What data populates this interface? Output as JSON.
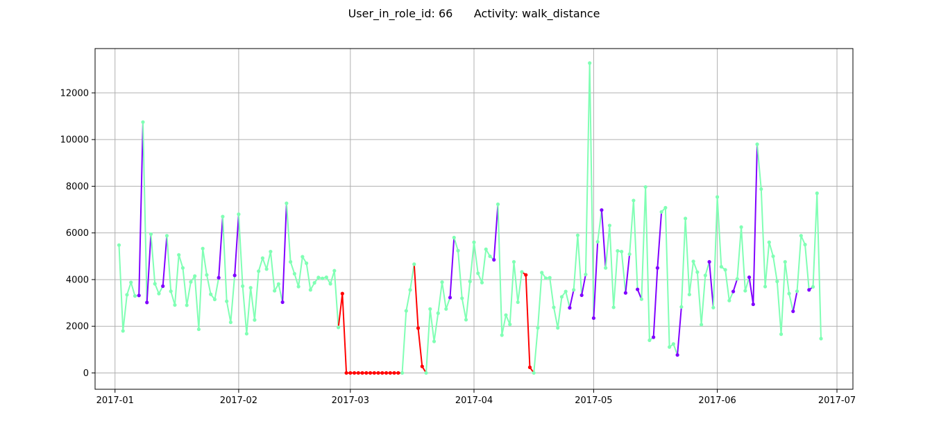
{
  "chart_data": {
    "type": "line",
    "title": "User_in_role_id: 66      Activity: walk_distance",
    "xlabel": "",
    "ylabel": "",
    "xlim": [
      "2016-12-27",
      "2017-07-05"
    ],
    "ylim": [
      -700,
      13900
    ],
    "x_ticks": [
      "2017-01",
      "2017-02",
      "2017-03",
      "2017-04",
      "2017-05",
      "2017-06",
      "2017-07"
    ],
    "y_ticks": [
      0,
      2000,
      4000,
      6000,
      8000,
      10000,
      12000
    ],
    "grid": true,
    "legend": "none",
    "colors": {
      "normal": "#80ffb4",
      "high": "#8000ff",
      "low": "#ff0000",
      "grid": "#b0b0b0"
    },
    "x_start": "2017-01-02",
    "interval_days": 1,
    "values": [
      5480,
      1800,
      3350,
      3880,
      3300,
      3320,
      10750,
      3020,
      5950,
      3820,
      3400,
      3720,
      5880,
      3500,
      2910,
      5060,
      4500,
      2900,
      3900,
      4150,
      1870,
      5330,
      4200,
      3370,
      3150,
      4080,
      6700,
      3070,
      2170,
      4180,
      6800,
      3720,
      1680,
      3650,
      2270,
      4360,
      4920,
      4450,
      5200,
      3520,
      3810,
      3030,
      7270,
      4760,
      4250,
      3700,
      4980,
      4700,
      3560,
      3860,
      4090,
      4050,
      4100,
      3820,
      4380,
      1950,
      3400,
      0,
      0,
      0,
      0,
      0,
      0,
      0,
      0,
      0,
      0,
      0,
      0,
      0,
      0,
      0,
      2660,
      3560,
      4660,
      1920,
      280,
      0,
      2740,
      1350,
      2560,
      3890,
      2740,
      3230,
      5800,
      5240,
      3200,
      2280,
      3920,
      5600,
      4270,
      3870,
      5300,
      5000,
      4850,
      7230,
      1620,
      2480,
      2080,
      4760,
      3030,
      4330,
      4200,
      240,
      0,
      1930,
      4300,
      4060,
      4080,
      2810,
      1930,
      3260,
      3490,
      2790,
      3560,
      5900,
      3330,
      4220,
      13280,
      2350,
      5620,
      6980,
      4500,
      6320,
      2810,
      5230,
      5200,
      3430,
      5090,
      7390,
      3580,
      3160,
      7970,
      1400,
      1530,
      4500,
      6900,
      7080,
      1110,
      1240,
      770,
      2830,
      6620,
      3360,
      4780,
      4320,
      2070,
      4180,
      4760,
      2800,
      7540,
      4550,
      4420,
      3100,
      3490,
      4030,
      6250,
      3520,
      4100,
      2940,
      9800,
      7880,
      3700,
      5600,
      5000,
      3920,
      1660,
      4760,
      3400,
      2640,
      3500,
      5880,
      5500,
      3560,
      3690,
      7700,
      1470
    ],
    "series_states": [
      "normal",
      "normal",
      "normal",
      "normal",
      "normal",
      "high",
      "normal",
      "high",
      "normal",
      "normal",
      "normal",
      "high",
      "normal",
      "normal",
      "normal",
      "normal",
      "normal",
      "normal",
      "normal",
      "normal",
      "normal",
      "normal",
      "normal",
      "normal",
      "normal",
      "high",
      "normal",
      "normal",
      "normal",
      "high",
      "normal",
      "normal",
      "normal",
      "normal",
      "normal",
      "normal",
      "normal",
      "normal",
      "normal",
      "normal",
      "normal",
      "high",
      "normal",
      "normal",
      "normal",
      "normal",
      "normal",
      "normal",
      "normal",
      "normal",
      "normal",
      "normal",
      "normal",
      "normal",
      "normal",
      "normal",
      "low",
      "low",
      "low",
      "low",
      "low",
      "low",
      "low",
      "low",
      "low",
      "low",
      "low",
      "low",
      "low",
      "low",
      "low",
      "normal",
      "normal",
      "normal",
      "normal",
      "low",
      "low",
      "normal",
      "normal",
      "normal",
      "normal",
      "normal",
      "normal",
      "high",
      "normal",
      "normal",
      "normal",
      "normal",
      "normal",
      "normal",
      "normal",
      "normal",
      "normal",
      "normal",
      "high",
      "normal",
      "normal",
      "normal",
      "normal",
      "normal",
      "normal",
      "normal",
      "low",
      "low",
      "normal",
      "normal",
      "normal",
      "normal",
      "normal",
      "normal",
      "normal",
      "normal",
      "normal",
      "high",
      "normal",
      "normal",
      "high",
      "normal",
      "normal",
      "high",
      "normal",
      "high",
      "normal",
      "normal",
      "normal",
      "normal",
      "normal",
      "high",
      "normal",
      "normal",
      "high",
      "normal",
      "normal",
      "normal",
      "high",
      "high",
      "normal",
      "normal",
      "normal",
      "normal",
      "high",
      "normal",
      "normal",
      "normal",
      "normal",
      "normal",
      "normal",
      "normal",
      "high",
      "normal",
      "normal",
      "normal",
      "normal",
      "normal",
      "high",
      "normal",
      "normal",
      "normal",
      "high",
      "high",
      "normal",
      "normal",
      "normal",
      "normal",
      "normal",
      "normal",
      "normal",
      "normal",
      "normal",
      "high",
      "normal",
      "normal",
      "normal",
      "high",
      "normal",
      "normal"
    ]
  }
}
